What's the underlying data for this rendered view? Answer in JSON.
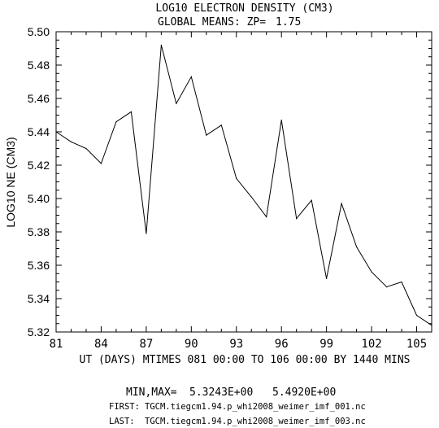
{
  "chart_data": {
    "type": "line",
    "title": "LOG10 ELECTRON DENSITY (CM3)",
    "subtitle_label": "GLOBAL MEANS: ZP=",
    "subtitle_value": "1.75",
    "ylabel": "LOG10 NE (CM3)",
    "xlabel": "UT (DAYS) MTIMES 081 00:00 TO 106 00:00 BY 1440 MINS",
    "xlim": [
      81,
      106
    ],
    "ylim": [
      5.32,
      5.5
    ],
    "x_ticks": [
      "81",
      "84",
      "87",
      "90",
      "93",
      "96",
      "99",
      "102",
      "105"
    ],
    "y_ticks": [
      "5.32",
      "5.34",
      "5.36",
      "5.38",
      "5.40",
      "5.42",
      "5.44",
      "5.46",
      "5.48",
      "5.50"
    ],
    "x": [
      81,
      82,
      83,
      84,
      85,
      86,
      87,
      88,
      89,
      90,
      91,
      92,
      93,
      94,
      95,
      96,
      97,
      98,
      99,
      100,
      101,
      102,
      103,
      104,
      105,
      106
    ],
    "values": [
      5.44,
      5.434,
      5.43,
      5.421,
      5.446,
      5.452,
      5.379,
      5.492,
      5.457,
      5.473,
      5.438,
      5.444,
      5.412,
      5.401,
      5.389,
      5.447,
      5.388,
      5.399,
      5.352,
      5.397,
      5.371,
      5.356,
      5.347,
      5.35,
      5.33,
      5.324
    ],
    "grid": false,
    "legend": "none",
    "line_color": "#000000"
  },
  "footer": {
    "minmax_label": "MIN,MAX=",
    "min_value": "5.3243E+00",
    "max_value": "5.4920E+00",
    "first_label": "FIRST:",
    "first_file": "TGCM.tiegcm1.94.p_whi2008_weimer_imf_001.nc",
    "last_label": "LAST:",
    "last_file": "TGCM.tiegcm1.94.p_whi2008_weimer_imf_003.nc"
  }
}
